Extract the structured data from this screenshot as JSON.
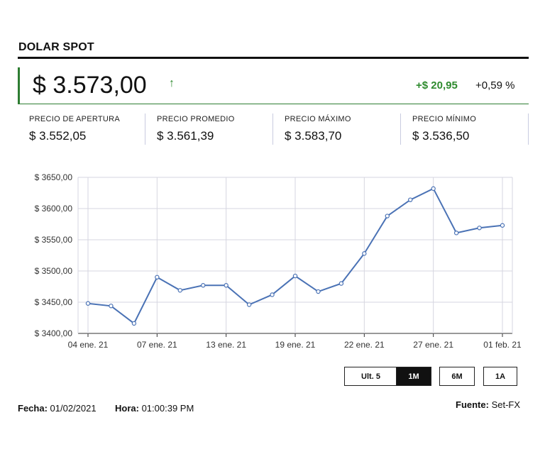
{
  "header": {
    "title": "DOLAR SPOT",
    "price": "$ 3.573,00",
    "arrow_icon": "up-arrow-icon",
    "change_abs": "+$ 20,95",
    "change_pct": "+0,59 %",
    "up_color": "#2e8b2e"
  },
  "stats": [
    {
      "label": "PRECIO DE APERTURA",
      "value": "$ 3.552,05"
    },
    {
      "label": "PRECIO PROMEDIO",
      "value": "$ 3.561,39"
    },
    {
      "label": "PRECIO MÁXIMO",
      "value": "$ 3.583,70"
    },
    {
      "label": "PRECIO MÍNIMO",
      "value": "$ 3.536,50"
    }
  ],
  "chart_data": {
    "type": "line",
    "title": "",
    "xlabel": "",
    "ylabel": "",
    "ylim": [
      3400,
      3650
    ],
    "y_ticks": [
      3400,
      3450,
      3500,
      3550,
      3600,
      3650
    ],
    "y_tick_labels": [
      "$ 3400,00",
      "$ 3450,00",
      "$ 3500,00",
      "$ 3550,00",
      "$ 3600,00",
      "$ 3650,00"
    ],
    "x_tick_labels": [
      "04 ene. 21",
      "07 ene. 21",
      "13 ene. 21",
      "19 ene. 21",
      "22 ene. 21",
      "27 ene. 21",
      "01 feb. 21"
    ],
    "x_tick_indices": [
      0,
      3,
      6,
      9,
      12,
      15,
      18
    ],
    "series": [
      {
        "name": "Dolar spot",
        "color": "#4a72b5",
        "values": [
          3448,
          3444,
          3416,
          3490,
          3469,
          3477,
          3477,
          3446,
          3462,
          3492,
          3467,
          3480,
          3528,
          3588,
          3614,
          3632,
          3561,
          3569,
          3573
        ]
      }
    ],
    "grid": true
  },
  "range_buttons": [
    {
      "label": "Ult. 5",
      "active": false
    },
    {
      "label": "1M",
      "active": true
    },
    {
      "label": "6M",
      "active": false
    },
    {
      "label": "1A",
      "active": false
    }
  ],
  "footer": {
    "date_label": "Fecha:",
    "date_value": "01/02/2021",
    "time_label": "Hora:",
    "time_value": "01:00:39 PM",
    "source_label": "Fuente:",
    "source_value": "Set-FX"
  }
}
